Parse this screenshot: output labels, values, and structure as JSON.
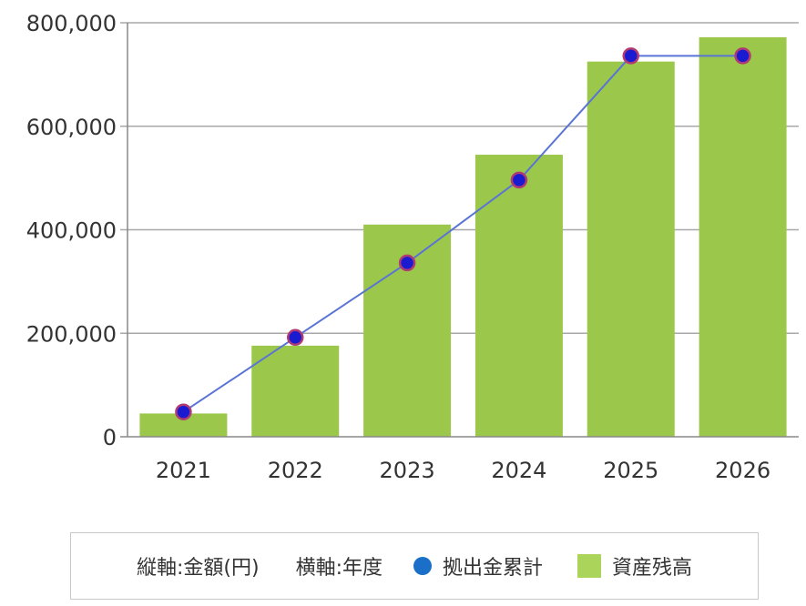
{
  "chart_data": {
    "type": "bar",
    "categories": [
      "2021",
      "2022",
      "2023",
      "2024",
      "2025",
      "2026"
    ],
    "series": [
      {
        "name": "資産残高",
        "type": "bar",
        "values": [
          45000,
          176000,
          410000,
          545000,
          725000,
          772000
        ]
      },
      {
        "name": "拠出金累計",
        "type": "line",
        "values": [
          48000,
          192000,
          336000,
          496000,
          736000,
          736000
        ]
      }
    ],
    "ylim": [
      0,
      800000
    ],
    "yticks": [
      0,
      200000,
      400000,
      600000,
      800000
    ],
    "ytick_labels": [
      "0",
      "200,000",
      "400,000",
      "600,000",
      "800,000"
    ],
    "grid": true,
    "legend_position": "bottom"
  },
  "legend": {
    "y_axis_note": "縦軸:金額(円)",
    "x_axis_note": "横軸:年度",
    "line_label": "拠出金累計",
    "bar_label": "資産残高"
  },
  "colors": {
    "bar": "#9bc84a",
    "legend_bar": "#aad45a",
    "line": "#5a74d6",
    "marker_fill": "#1a1ad0",
    "marker_stroke": "#b03a72",
    "legend_dot": "#1a6fc8",
    "grid": "#a8a8a8",
    "axis": "#888888",
    "text": "#333333"
  }
}
